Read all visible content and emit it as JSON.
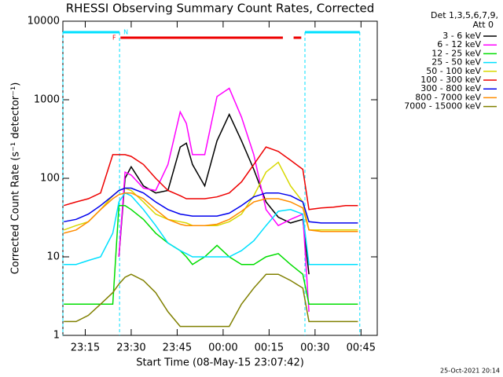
{
  "chart_data": {
    "type": "line",
    "title": "RHESSI Observing Summary Count Rates, Corrected",
    "legend_header": [
      "Det 1,3,5,6,7,9,",
      "Att 0"
    ],
    "x_label": "Start Time (08-May-15 23:07:42)",
    "y_label": "Corrected Count Rate (s⁻¹ detector⁻¹)",
    "timestamp": "25-Oct-2021 20:14",
    "log_y": true,
    "xlim": [
      7.7,
      110.3
    ],
    "ylim": [
      1,
      10000
    ],
    "xticks": [
      {
        "value": 15,
        "label": "23:15"
      },
      {
        "value": 30,
        "label": "23:30"
      },
      {
        "value": 45,
        "label": "23:45"
      },
      {
        "value": 60,
        "label": "00:00"
      },
      {
        "value": 75,
        "label": "00:15"
      },
      {
        "value": 90,
        "label": "00:30"
      },
      {
        "value": 105,
        "label": "00:45"
      }
    ],
    "yticks": [
      1,
      10,
      100,
      1000,
      10000
    ],
    "flag_bars": [
      {
        "label": "N",
        "color": "#00e0ff",
        "ranges": [
          [
            7.7,
            26.2
          ],
          [
            86.7,
            104.6
          ]
        ]
      },
      {
        "label": "F",
        "color": "#ee0000",
        "ranges": [
          [
            26.5,
            79.5
          ],
          [
            83,
            85.5
          ]
        ]
      }
    ],
    "x": [
      8,
      12,
      16,
      20,
      24,
      26,
      28,
      30,
      34,
      38,
      42,
      46,
      48,
      50,
      54,
      58,
      62,
      66,
      70,
      74,
      78,
      82,
      86,
      88,
      92,
      96,
      100,
      104
    ],
    "series": [
      {
        "name": "3 - 6 keV",
        "color": "#000000",
        "values": [
          null,
          null,
          null,
          null,
          null,
          10,
          100,
          140,
          80,
          65,
          70,
          250,
          280,
          150,
          80,
          300,
          650,
          300,
          130,
          50,
          32,
          27,
          30,
          6,
          null,
          null,
          null,
          null
        ]
      },
      {
        "name": "6 - 12 keV",
        "color": "#ff00ff",
        "values": [
          null,
          null,
          null,
          null,
          null,
          10,
          120,
          110,
          75,
          70,
          150,
          700,
          500,
          200,
          200,
          1100,
          1400,
          600,
          200,
          40,
          25,
          30,
          35,
          2,
          null,
          null,
          null,
          null
        ]
      },
      {
        "name": "12 - 25 keV",
        "color": "#00dd00",
        "values": [
          2.5,
          2.5,
          2.5,
          2.5,
          2.5,
          45,
          45,
          40,
          30,
          20,
          15,
          12,
          10,
          8,
          10,
          14,
          10,
          8,
          8,
          10,
          11,
          8,
          6,
          2.5,
          2.5,
          2.5,
          2.5,
          2.5
        ]
      },
      {
        "name": "25 - 50 keV",
        "color": "#00e0ff",
        "values": [
          8,
          8,
          9,
          10,
          20,
          50,
          65,
          60,
          40,
          25,
          15,
          12,
          11,
          10,
          10,
          10,
          10,
          12,
          16,
          25,
          38,
          40,
          35,
          8,
          8,
          8,
          8,
          8
        ]
      },
      {
        "name": "50 - 100 keV",
        "color": "#d8d800",
        "values": [
          22,
          25,
          28,
          40,
          60,
          70,
          75,
          70,
          50,
          35,
          30,
          28,
          27,
          25,
          25,
          25,
          28,
          35,
          60,
          120,
          160,
          80,
          50,
          22,
          22,
          22,
          22,
          22
        ]
      },
      {
        "name": "100 - 300 keV",
        "color": "#ee0000",
        "values": [
          45,
          50,
          55,
          65,
          200,
          200,
          200,
          190,
          150,
          100,
          70,
          60,
          55,
          55,
          55,
          58,
          65,
          90,
          150,
          250,
          220,
          170,
          130,
          40,
          42,
          43,
          45,
          45
        ]
      },
      {
        "name": "300 - 800 keV",
        "color": "#0000ee",
        "values": [
          28,
          30,
          35,
          45,
          60,
          70,
          75,
          75,
          65,
          50,
          40,
          35,
          34,
          33,
          33,
          33,
          36,
          45,
          58,
          65,
          65,
          60,
          50,
          28,
          27,
          27,
          27,
          27
        ]
      },
      {
        "name": "800 - 7000 keV",
        "color": "#ff8c00",
        "values": [
          20,
          22,
          28,
          40,
          55,
          62,
          65,
          65,
          55,
          40,
          30,
          26,
          25,
          25,
          25,
          26,
          30,
          38,
          50,
          55,
          55,
          50,
          42,
          22,
          21,
          21,
          21,
          21
        ]
      },
      {
        "name": "7000 - 15000 keV",
        "color": "#808000",
        "values": [
          1.5,
          1.5,
          1.8,
          2.5,
          3.5,
          4.5,
          5.5,
          6,
          5,
          3.5,
          2,
          1.3,
          1.3,
          1.3,
          1.3,
          1.3,
          1.3,
          2.5,
          4,
          6,
          6,
          5,
          4,
          1.5,
          1.5,
          1.5,
          1.5,
          1.5
        ]
      }
    ]
  }
}
